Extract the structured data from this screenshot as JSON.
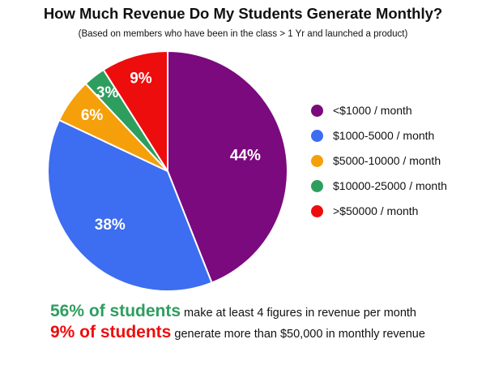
{
  "chart_data": {
    "type": "pie",
    "title": "How Much Revenue Do My Students Generate Monthly?",
    "subtitle": "(Based on members who have been in the class > 1 Yr and launched a product)",
    "slices": [
      {
        "label": "<$1000 / month",
        "value": 44,
        "display": "44%",
        "color": "#7b0a7e"
      },
      {
        "label": "$1000-5000 / month",
        "value": 38,
        "display": "38%",
        "color": "#3d6df0"
      },
      {
        "label": "$5000-10000 / month",
        "value": 6,
        "display": "6%",
        "color": "#f5a00a"
      },
      {
        "label": "$10000-25000 / month",
        "value": 3,
        "display": "3%",
        "color": "#2e9e5e"
      },
      {
        "label": ">$50000 / month",
        "value": 9,
        "display": "9%",
        "color": "#ee0d0d"
      }
    ],
    "legend_position": "right"
  },
  "footer": {
    "line1": {
      "highlight": "56% of students",
      "rest": " make at least 4 figures in revenue per month",
      "color": "#2e9e5e"
    },
    "line2": {
      "highlight": "9% of students",
      "rest": " generate more than $50,000 in monthly revenue",
      "color": "#ee0d0d"
    }
  }
}
